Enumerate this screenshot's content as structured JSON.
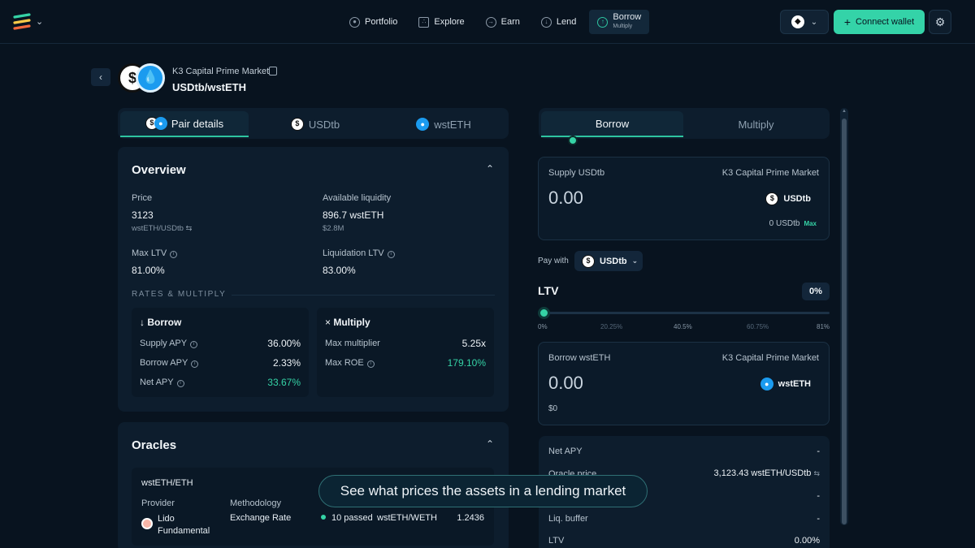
{
  "nav": {
    "items": [
      {
        "label": "Portfolio",
        "icon": "user-circle-icon"
      },
      {
        "label": "Explore",
        "icon": "nodes-icon"
      },
      {
        "label": "Earn",
        "icon": "arrow-circle-icon"
      },
      {
        "label": "Lend",
        "icon": "down-arrow-circle-icon"
      }
    ],
    "active": {
      "label": "Borrow",
      "sublabel": "Multiply"
    },
    "connect_label": "Connect wallet"
  },
  "header": {
    "market": "K3 Capital Prime Market",
    "pair": "USDtb/wstETH"
  },
  "left_tabs": [
    "Pair details",
    "USDtb",
    "wstETH"
  ],
  "overview": {
    "title": "Overview",
    "price_label": "Price",
    "price_value": "3123",
    "price_unit": "wstETH/USDtb",
    "liquidity_label": "Available liquidity",
    "liquidity_value": "896.7 wstETH",
    "liquidity_usd": "$2.8M",
    "max_ltv_label": "Max LTV",
    "max_ltv_value": "81.00%",
    "liq_ltv_label": "Liquidation LTV",
    "liq_ltv_value": "83.00%",
    "rates_heading": "RATES & MULTIPLY",
    "borrow": {
      "title": "Borrow",
      "rows": [
        {
          "label": "Supply APY",
          "value": "36.00%"
        },
        {
          "label": "Borrow APY",
          "value": "2.33%"
        },
        {
          "label": "Net APY",
          "value": "33.67%"
        }
      ]
    },
    "multiply": {
      "title": "Multiply",
      "rows": [
        {
          "label": "Max multiplier",
          "value": "5.25x"
        },
        {
          "label": "Max ROE",
          "value": "179.10%"
        }
      ]
    }
  },
  "oracles": {
    "title": "Oracles",
    "pair": "wstETH/ETH",
    "provider_label": "Provider",
    "provider_value": "Lido Fundamental",
    "methodology_label": "Methodology",
    "methodology_value": "Exchange Rate",
    "checks": "10 passed",
    "feed": "wstETH/WETH",
    "rate": "1.2436"
  },
  "right_tabs": [
    "Borrow",
    "Multiply"
  ],
  "supply": {
    "label": "Supply USDtb",
    "market": "K3 Capital Prime Market",
    "amount": "0.00",
    "token": "USDtb",
    "balance": "0 USDtb",
    "max": "Max"
  },
  "pay_with": {
    "label": "Pay with",
    "token": "USDtb"
  },
  "ltv": {
    "title": "LTV",
    "value": "0%",
    "ticks": [
      "0%",
      "20.25%",
      "40.5%",
      "60.75%",
      "81%"
    ]
  },
  "borrow_box": {
    "label": "Borrow wstETH",
    "market": "K3 Capital Prime Market",
    "amount": "0.00",
    "token": "wstETH",
    "usd": "$0"
  },
  "stats": [
    {
      "label": "Net APY",
      "value": "-"
    },
    {
      "label": "Oracle price",
      "value": "3,123.43 wstETH/USDtb"
    },
    {
      "label": "",
      "value": "-"
    },
    {
      "label": "Liq. buffer",
      "value": "-"
    },
    {
      "label": "LTV",
      "value": "0.00%"
    }
  ],
  "tooltip": "See what prices the assets in a lending market",
  "colors": {
    "accent": "#35d3a6",
    "background": "#08131f",
    "card": "#0d1d2d"
  }
}
